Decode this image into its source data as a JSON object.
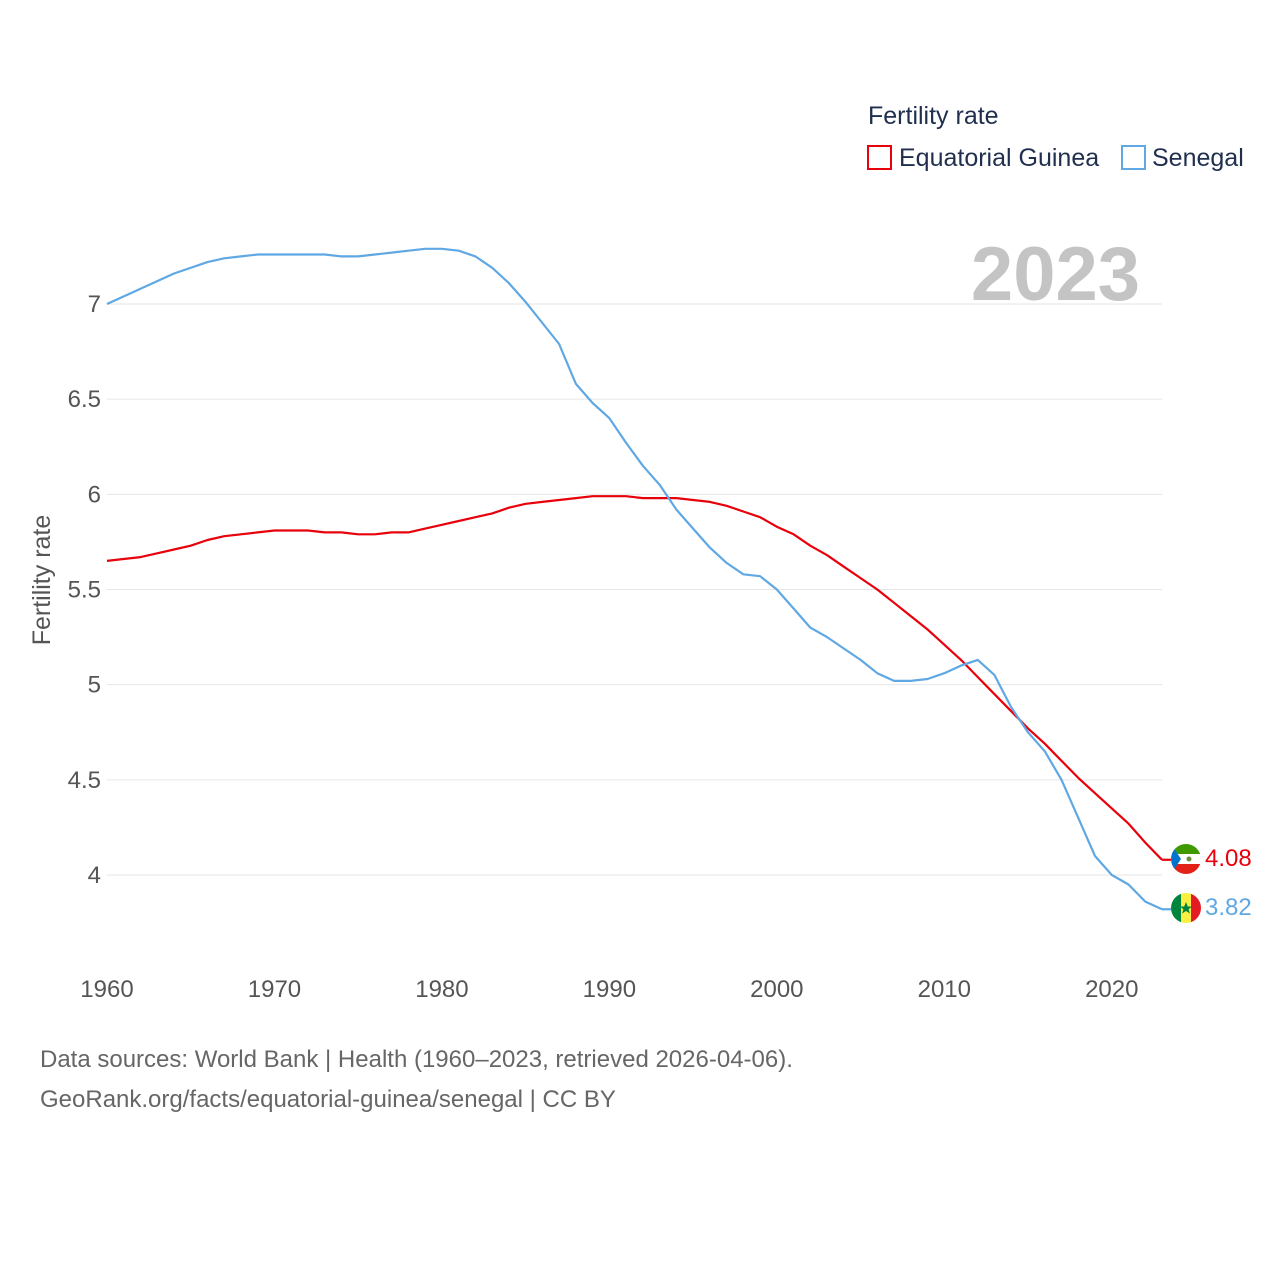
{
  "chart_data": {
    "type": "line",
    "title": "",
    "year_label": "2023",
    "legend_title": "Fertility rate",
    "ylabel": "Fertility rate",
    "xlabel": "",
    "xlim": [
      1960,
      2023
    ],
    "ylim": [
      3.62,
      7.35
    ],
    "y_ticks": [
      4,
      4.5,
      5,
      5.5,
      6,
      6.5,
      7
    ],
    "y_tick_labels": [
      "4",
      "4.5",
      "5",
      "5.5",
      "6",
      "6.5",
      "7"
    ],
    "x_ticks": [
      1960,
      1970,
      1980,
      1990,
      2000,
      2010,
      2020
    ],
    "x_tick_labels": [
      "1960",
      "1970",
      "1980",
      "1990",
      "2000",
      "2010",
      "2020"
    ],
    "grid": true,
    "legend_position": "top-right",
    "series": [
      {
        "name": "Equatorial Guinea",
        "color": "#e8000b",
        "end_label": "4.08",
        "flag": "equatorial-guinea",
        "x": [
          1960,
          1962,
          1963,
          1964,
          1965,
          1966,
          1967,
          1968,
          1969,
          1970,
          1971,
          1972,
          1973,
          1974,
          1975,
          1976,
          1977,
          1978,
          1979,
          1980,
          1981,
          1982,
          1983,
          1984,
          1985,
          1986,
          1987,
          1988,
          1989,
          1990,
          1991,
          1992,
          1993,
          1994,
          1995,
          1996,
          1997,
          1998,
          1999,
          2000,
          2001,
          2002,
          2003,
          2004,
          2005,
          2006,
          2007,
          2008,
          2009,
          2010,
          2011,
          2012,
          2013,
          2014,
          2015,
          2016,
          2017,
          2018,
          2019,
          2020,
          2021,
          2022,
          2023
        ],
        "values": [
          5.65,
          5.67,
          5.69,
          5.71,
          5.73,
          5.76,
          5.78,
          5.79,
          5.8,
          5.81,
          5.81,
          5.81,
          5.8,
          5.8,
          5.79,
          5.79,
          5.8,
          5.8,
          5.82,
          5.84,
          5.86,
          5.88,
          5.9,
          5.93,
          5.95,
          5.96,
          5.97,
          5.98,
          5.99,
          5.99,
          5.99,
          5.98,
          5.98,
          5.98,
          5.97,
          5.96,
          5.94,
          5.91,
          5.88,
          5.83,
          5.79,
          5.73,
          5.68,
          5.62,
          5.56,
          5.5,
          5.43,
          5.36,
          5.29,
          5.21,
          5.13,
          5.04,
          4.95,
          4.86,
          4.77,
          4.69,
          4.6,
          4.51,
          4.43,
          4.35,
          4.27,
          4.17,
          4.08
        ]
      },
      {
        "name": "Senegal",
        "color": "#5fa8e3",
        "end_label": "3.82",
        "flag": "senegal",
        "x": [
          1960,
          1962,
          1964,
          1966,
          1967,
          1968,
          1969,
          1970,
          1971,
          1972,
          1973,
          1974,
          1975,
          1976,
          1977,
          1978,
          1979,
          1980,
          1981,
          1982,
          1983,
          1984,
          1985,
          1986,
          1987,
          1988,
          1989,
          1990,
          1991,
          1992,
          1993,
          1994,
          1995,
          1996,
          1997,
          1998,
          1999,
          2000,
          2001,
          2002,
          2003,
          2004,
          2005,
          2006,
          2007,
          2008,
          2009,
          2010,
          2011,
          2012,
          2013,
          2014,
          2015,
          2016,
          2017,
          2018,
          2019,
          2020,
          2021,
          2022,
          2023
        ],
        "values": [
          7.0,
          7.08,
          7.16,
          7.22,
          7.24,
          7.25,
          7.26,
          7.26,
          7.26,
          7.26,
          7.26,
          7.25,
          7.25,
          7.26,
          7.27,
          7.28,
          7.29,
          7.29,
          7.28,
          7.25,
          7.19,
          7.11,
          7.01,
          6.9,
          6.79,
          6.58,
          6.48,
          6.4,
          6.27,
          6.15,
          6.05,
          5.92,
          5.82,
          5.72,
          5.64,
          5.58,
          5.57,
          5.5,
          5.4,
          5.3,
          5.25,
          5.19,
          5.13,
          5.06,
          5.02,
          5.02,
          5.03,
          5.06,
          5.1,
          5.13,
          5.05,
          4.88,
          4.75,
          4.65,
          4.5,
          4.3,
          4.1,
          4.0,
          3.95,
          3.86,
          3.82
        ]
      }
    ]
  },
  "footer": {
    "line1": "Data sources: World Bank | Health (1960–2023, retrieved 2026-04-06).",
    "line2": "GeoRank.org/facts/equatorial-guinea/senegal | CC BY"
  }
}
